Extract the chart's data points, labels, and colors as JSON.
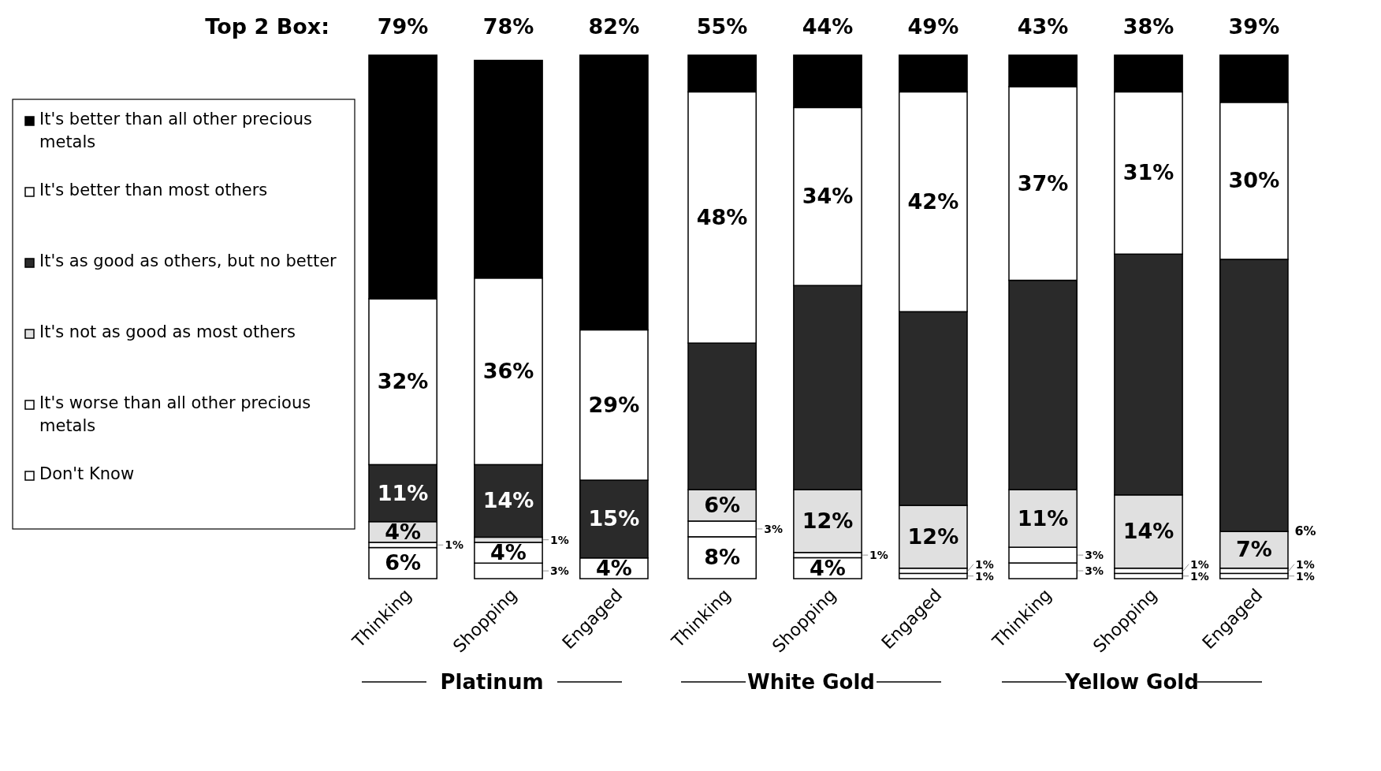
{
  "chart_data": [
    {
      "type": "bar",
      "stacked": true,
      "xlabel": "Platinum",
      "categories": [
        "Thinking",
        "Shopping",
        "Engaged"
      ],
      "legend": "left",
      "annotations": [
        "Top 2 Box:",
        "79%",
        "78%",
        "82%"
      ],
      "series": [
        {
          "name": "Don't Know",
          "color": "#ffffff",
          "values": [
            6,
            3,
            4
          ],
          "value_labels": [
            "6%",
            "3%",
            "4%"
          ]
        },
        {
          "name": "It's worse than all other precious metals",
          "color": "#ffffff",
          "values": [
            1,
            4,
            null
          ],
          "value_labels": [
            "1%",
            "4%",
            null
          ]
        },
        {
          "name": "It's not as good as most others",
          "color": "#e0e0e0",
          "values": [
            4,
            1,
            null
          ],
          "value_labels": [
            "4%",
            "1%",
            null
          ]
        },
        {
          "name": "It's as good as others, but no better",
          "color": "#2a2a2a",
          "values": [
            11,
            14,
            15
          ],
          "value_labels": [
            "11%",
            "14%",
            "15%"
          ]
        },
        {
          "name": "It's better than most others",
          "color": "#ffffff",
          "values": [
            32,
            36,
            29
          ],
          "value_labels": [
            "32%",
            "36%",
            "29%"
          ]
        },
        {
          "name": "It's better than all other precious metals",
          "color": "#000000",
          "values": [
            47,
            42,
            53
          ],
          "value_labels": [
            null,
            null,
            null
          ]
        }
      ]
    },
    {
      "type": "bar",
      "stacked": true,
      "xlabel": "White Gold",
      "categories": [
        "Thinking",
        "Shopping",
        "Engaged"
      ],
      "annotations": [
        "55%",
        "44%",
        "49%"
      ],
      "series": [
        {
          "color": "#ffffff",
          "values": [
            8,
            4,
            1
          ],
          "value_labels": [
            "8%",
            "4%",
            "1%"
          ]
        },
        {
          "color": "#ffffff",
          "values": [
            3,
            1,
            1
          ],
          "value_labels": [
            "3%",
            "1%",
            "1%"
          ]
        },
        {
          "color": "#e0e0e0",
          "values": [
            6,
            12,
            12
          ],
          "value_labels": [
            "6%",
            "12%",
            "12%"
          ]
        },
        {
          "color": "#2a2a2a",
          "values": [
            28,
            39,
            37
          ],
          "value_labels": [
            null,
            null,
            null
          ]
        },
        {
          "color": "#ffffff",
          "values": [
            48,
            34,
            42
          ],
          "value_labels": [
            "48%",
            "34%",
            "42%"
          ]
        },
        {
          "color": "#000000",
          "values": [
            7,
            10,
            7
          ],
          "value_labels": [
            null,
            null,
            null
          ]
        }
      ]
    },
    {
      "type": "bar",
      "stacked": true,
      "xlabel": "Yellow Gold",
      "categories": [
        "Thinking",
        "Shopping",
        "Engaged"
      ],
      "annotations": [
        "6%",
        "43%",
        "38%",
        "39%"
      ],
      "series": [
        {
          "color": "#ffffff",
          "values": [
            3,
            1,
            1
          ],
          "value_labels": [
            "3%",
            "1%",
            "1%"
          ]
        },
        {
          "color": "#ffffff",
          "values": [
            3,
            1,
            1
          ],
          "value_labels": [
            "3%",
            "1%",
            "1%"
          ]
        },
        {
          "color": "#e0e0e0",
          "values": [
            11,
            14,
            7
          ],
          "value_labels": [
            "11%",
            "14%",
            "7%"
          ]
        },
        {
          "color": "#2a2a2a",
          "values": [
            40,
            46,
            52
          ],
          "value_labels": [
            null,
            null,
            null
          ]
        },
        {
          "color": "#ffffff",
          "values": [
            37,
            31,
            30
          ],
          "value_labels": [
            "37%",
            "31%",
            "30%"
          ]
        },
        {
          "color": "#000000",
          "values": [
            6,
            7,
            9
          ],
          "value_labels": [
            null,
            null,
            null
          ]
        }
      ]
    }
  ]
}
